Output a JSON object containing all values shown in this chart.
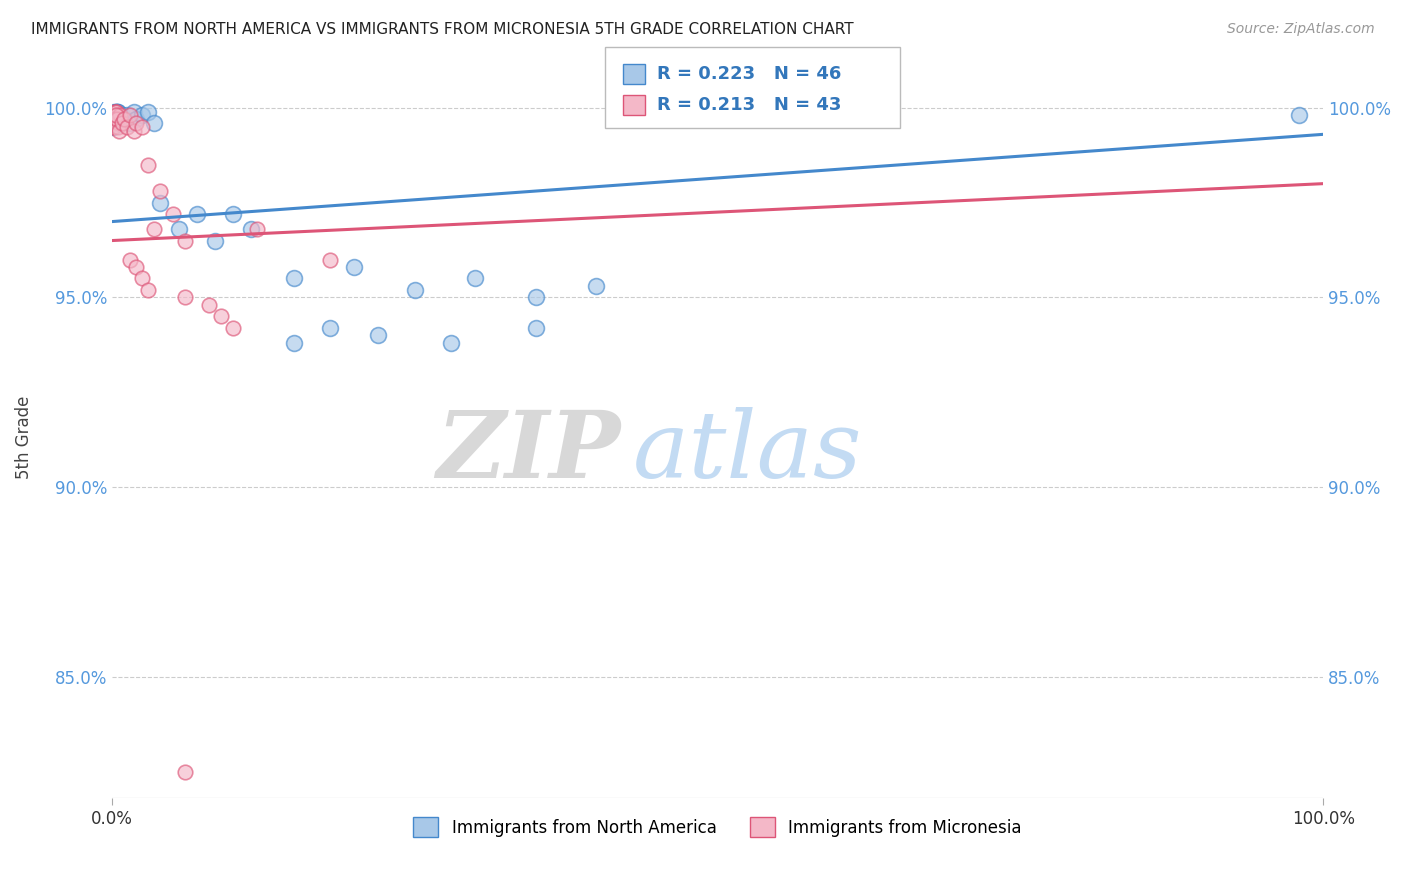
{
  "title": "IMMIGRANTS FROM NORTH AMERICA VS IMMIGRANTS FROM MICRONESIA 5TH GRADE CORRELATION CHART",
  "source_text": "Source: ZipAtlas.com",
  "ylabel": "5th Grade",
  "xlim": [
    0.0,
    1.0
  ],
  "ylim": [
    0.818,
    1.008
  ],
  "yticks": [
    0.85,
    0.9,
    0.95,
    1.0
  ],
  "ytick_labels": [
    "85.0%",
    "90.0%",
    "95.0%",
    "100.0%"
  ],
  "xticks": [
    0.0,
    1.0
  ],
  "xtick_labels": [
    "0.0%",
    "100.0%"
  ],
  "legend_R1": "R = 0.223",
  "legend_N1": "N = 46",
  "legend_R2": "R = 0.213",
  "legend_N2": "N = 43",
  "series1_color": "#a8c8e8",
  "series2_color": "#f4b8c8",
  "trendline1_color": "#4488cc",
  "trendline2_color": "#dd5577",
  "watermark_zip": "ZIP",
  "watermark_atlas": "atlas",
  "north_america_x": [
    0.001,
    0.002,
    0.001,
    0.003,
    0.002,
    0.001,
    0.004,
    0.002,
    0.003,
    0.001,
    0.005,
    0.004,
    0.006,
    0.003,
    0.007,
    0.005,
    0.008,
    0.006,
    0.004,
    0.002,
    0.01,
    0.012,
    0.015,
    0.018,
    0.02,
    0.025,
    0.03,
    0.035,
    0.04,
    0.055,
    0.07,
    0.085,
    0.1,
    0.115,
    0.15,
    0.2,
    0.25,
    0.3,
    0.35,
    0.4,
    0.15,
    0.18,
    0.22,
    0.28,
    0.35,
    0.98
  ],
  "north_america_y": [
    0.998,
    0.999,
    0.997,
    0.999,
    0.998,
    0.996,
    0.998,
    0.997,
    0.999,
    0.995,
    0.998,
    0.999,
    0.997,
    0.998,
    0.996,
    0.999,
    0.998,
    0.997,
    0.999,
    0.998,
    0.997,
    0.998,
    0.996,
    0.999,
    0.997,
    0.998,
    0.999,
    0.996,
    0.975,
    0.968,
    0.972,
    0.965,
    0.972,
    0.968,
    0.955,
    0.958,
    0.952,
    0.955,
    0.95,
    0.953,
    0.938,
    0.942,
    0.94,
    0.938,
    0.942,
    0.998
  ],
  "micronesia_x": [
    0.001,
    0.002,
    0.001,
    0.003,
    0.002,
    0.001,
    0.004,
    0.002,
    0.003,
    0.001,
    0.005,
    0.004,
    0.003,
    0.006,
    0.002,
    0.007,
    0.005,
    0.004,
    0.003,
    0.006,
    0.008,
    0.01,
    0.012,
    0.015,
    0.018,
    0.02,
    0.025,
    0.03,
    0.04,
    0.05,
    0.06,
    0.035,
    0.015,
    0.02,
    0.025,
    0.03,
    0.12,
    0.18,
    0.06,
    0.08,
    0.09,
    0.1,
    0.06
  ],
  "micronesia_y": [
    0.998,
    0.999,
    0.997,
    0.999,
    0.998,
    0.996,
    0.998,
    0.997,
    0.999,
    0.995,
    0.997,
    0.998,
    0.999,
    0.996,
    0.997,
    0.998,
    0.995,
    0.997,
    0.998,
    0.994,
    0.996,
    0.997,
    0.995,
    0.998,
    0.994,
    0.996,
    0.995,
    0.985,
    0.978,
    0.972,
    0.965,
    0.968,
    0.96,
    0.958,
    0.955,
    0.952,
    0.968,
    0.96,
    0.95,
    0.948,
    0.945,
    0.942,
    0.825
  ],
  "trendline1_x0": 0.0,
  "trendline1_y0": 0.97,
  "trendline1_x1": 1.0,
  "trendline1_y1": 0.993,
  "trendline2_x0": 0.0,
  "trendline2_y0": 0.965,
  "trendline2_x1": 1.0,
  "trendline2_y1": 0.98
}
